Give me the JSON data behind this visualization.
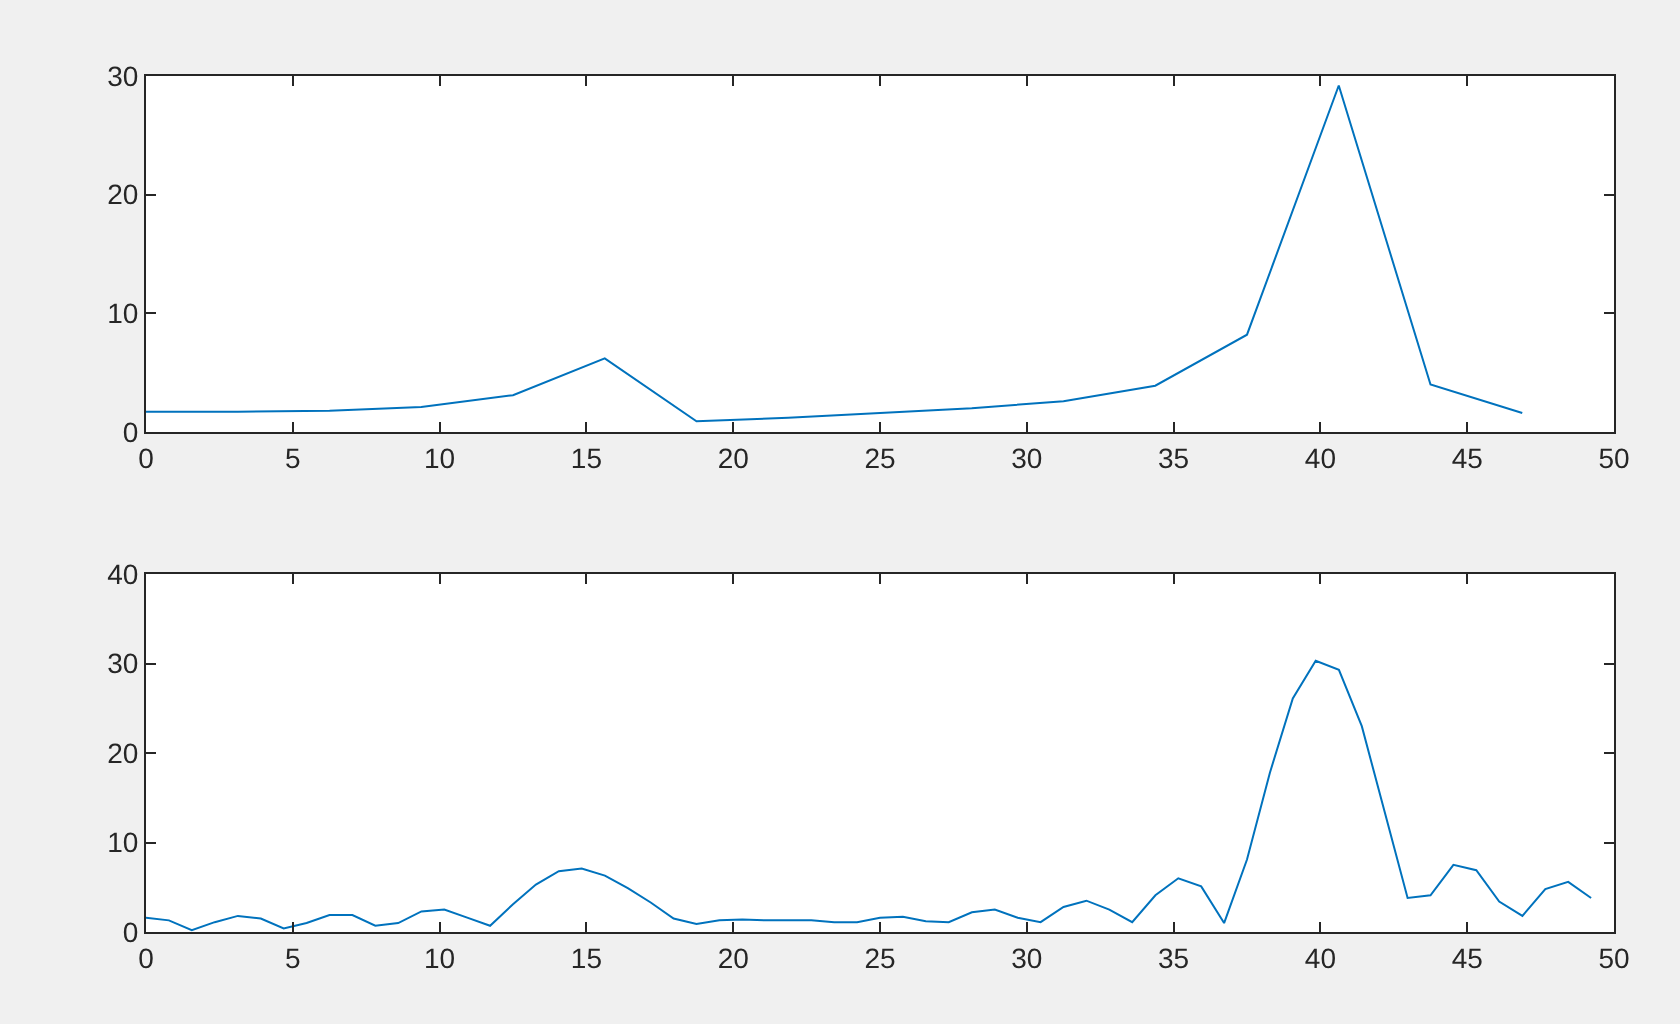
{
  "chart_data": [
    {
      "type": "line",
      "x": [
        0,
        3.125,
        6.25,
        9.375,
        12.5,
        15.625,
        18.75,
        21.875,
        25,
        28.125,
        31.25,
        34.375,
        37.5,
        40.625,
        43.75,
        46.875
      ],
      "series": [
        {
          "color": "#0072bd",
          "values": [
            1.7,
            1.7,
            1.8,
            2.1,
            3.1,
            6.2,
            0.9,
            1.2,
            1.6,
            2.0,
            2.6,
            3.9,
            8.2,
            29.2,
            4.0,
            1.6
          ]
        }
      ],
      "xlim": [
        0,
        50
      ],
      "xticks": [
        0,
        5,
        10,
        15,
        20,
        25,
        30,
        35,
        40,
        45,
        50
      ],
      "ylim": [
        0,
        30
      ],
      "yticks": [
        0,
        10,
        20,
        30
      ],
      "grid": false,
      "marker": "none",
      "line_style": "solid"
    },
    {
      "type": "line",
      "x": [
        0,
        0.78,
        1.56,
        2.34,
        3.13,
        3.91,
        4.69,
        5.47,
        6.25,
        7.03,
        7.81,
        8.59,
        9.38,
        10.16,
        10.94,
        11.72,
        12.5,
        13.28,
        14.06,
        14.84,
        15.63,
        16.41,
        17.19,
        17.97,
        18.75,
        19.53,
        20.31,
        21.09,
        21.88,
        22.66,
        23.44,
        24.22,
        25,
        25.78,
        26.56,
        27.34,
        28.13,
        28.91,
        29.69,
        30.47,
        31.25,
        32.03,
        32.81,
        33.59,
        34.38,
        35.16,
        35.94,
        36.72,
        37.5,
        38.28,
        39.06,
        39.84,
        40.63,
        41.41,
        42.19,
        42.97,
        43.75,
        44.53,
        45.31,
        46.09,
        46.88,
        47.66,
        48.44,
        49.22
      ],
      "series": [
        {
          "color": "#0072bd",
          "values": [
            1.6,
            1.3,
            0.2,
            1.1,
            1.8,
            1.5,
            0.4,
            1.0,
            1.9,
            1.9,
            0.7,
            1.0,
            2.3,
            2.5,
            1.6,
            0.7,
            3.1,
            5.3,
            6.8,
            7.1,
            6.3,
            4.9,
            3.3,
            1.5,
            0.9,
            1.3,
            1.4,
            1.3,
            1.3,
            1.3,
            1.1,
            1.1,
            1.6,
            1.7,
            1.2,
            1.1,
            2.2,
            2.5,
            1.6,
            1.1,
            2.8,
            3.5,
            2.5,
            1.1,
            4.1,
            6.0,
            5.1,
            1.0,
            8.1,
            17.8,
            26.1,
            30.3,
            29.3,
            23.0,
            13.4,
            3.8,
            4.1,
            7.5,
            6.9,
            3.4,
            1.8,
            4.8,
            5.6,
            3.8
          ]
        }
      ],
      "xlim": [
        0,
        50
      ],
      "xticks": [
        0,
        5,
        10,
        15,
        20,
        25,
        30,
        35,
        40,
        45,
        50
      ],
      "ylim": [
        0,
        40
      ],
      "yticks": [
        0,
        10,
        20,
        30,
        40
      ],
      "grid": false,
      "marker": "none",
      "line_style": "solid"
    }
  ]
}
